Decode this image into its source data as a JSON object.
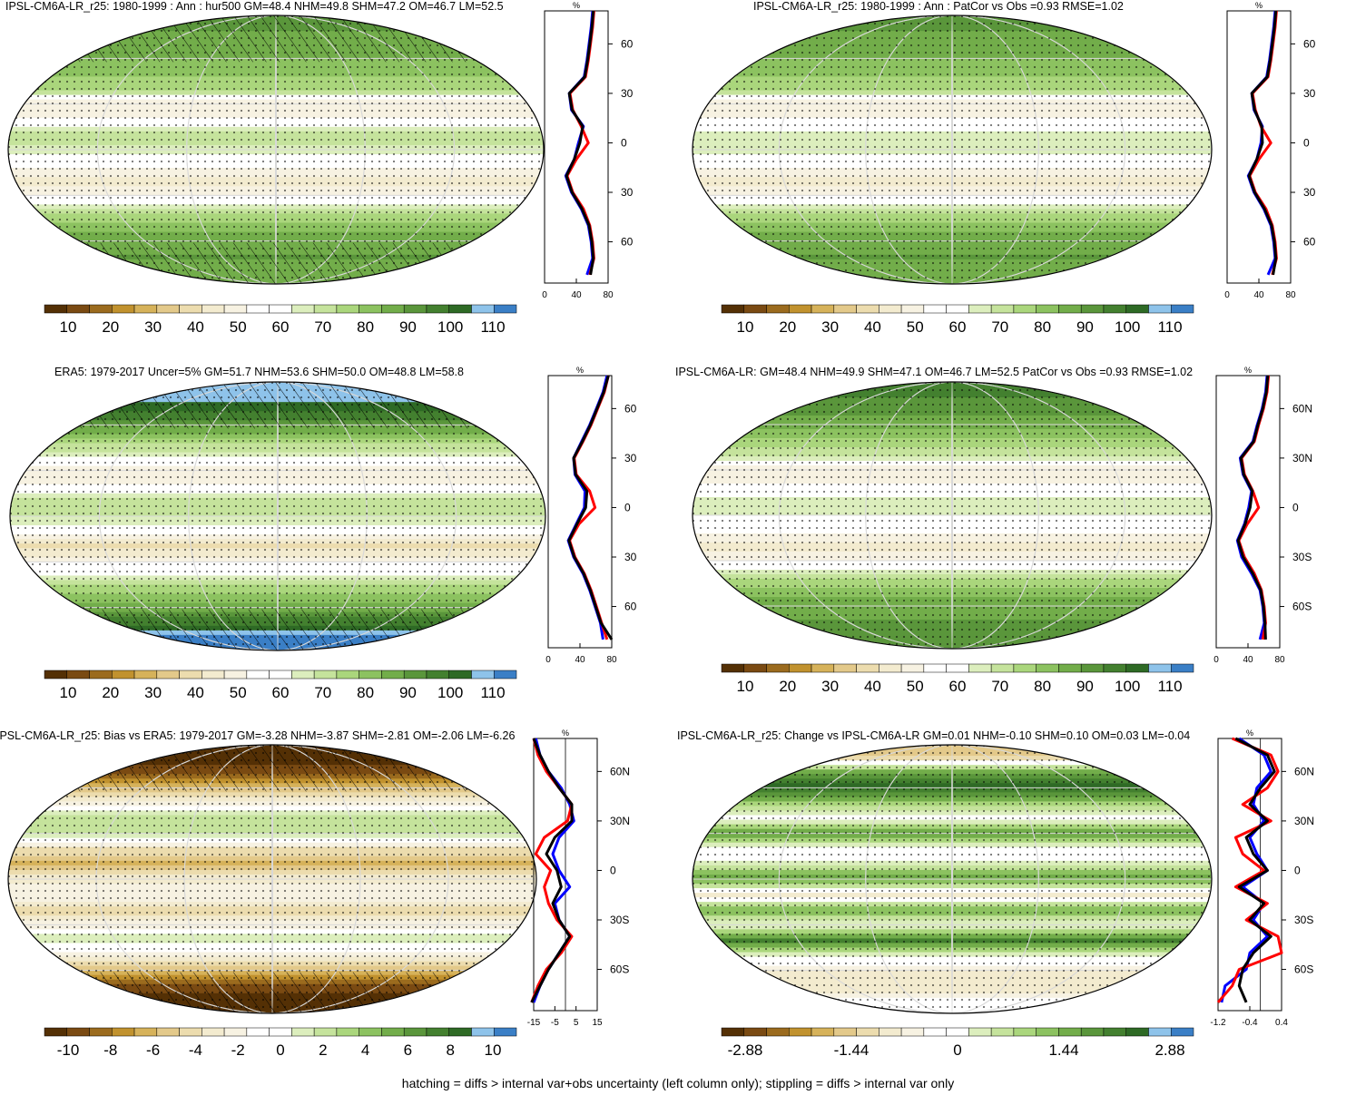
{
  "footer": "hatching = diffs > internal var+obs uncertainty (left column only); stippling = diffs > internal var only",
  "colors": {
    "palette": [
      "#543005",
      "#7a4a12",
      "#9b6b1e",
      "#c1922e",
      "#d6b25a",
      "#e3c98a",
      "#ecdcae",
      "#f3ebcf",
      "#f7f2e2",
      "#ffffff",
      "#ffffff",
      "#dceebd",
      "#c5e39c",
      "#aad67c",
      "#8cc260",
      "#72ad4a",
      "#5a963b",
      "#43802f",
      "#2e6a25",
      "#8ec3ea",
      "#3a7fc6"
    ],
    "model_line": "#0000ff",
    "obs_line": "#ff0000",
    "ens_line": "#000000"
  },
  "panels": [
    {
      "id": "p1",
      "title": "IPSL-CM6A-LR_r25: 1980-1999 : Ann : hur500 GM=48.4 NHM=49.8 SHM=47.2 OM=46.7 LM=52.5",
      "unit": "%",
      "colorbar_labels": [
        "10",
        "20",
        "30",
        "40",
        "50",
        "60",
        "70",
        "80",
        "90",
        "100",
        "110"
      ],
      "profile_xticks": [
        "0",
        "40",
        "80"
      ],
      "lat_ticks": [
        "60N",
        "30N",
        "0",
        "30S",
        "60S"
      ],
      "hatched": true,
      "stippled": true
    },
    {
      "id": "p2",
      "title": "IPSL-CM6A-LR_r25: 1980-1999 : Ann : PatCor vs Obs =0.93 RMSE=1.02",
      "unit": "%",
      "colorbar_labels": [
        "10",
        "20",
        "30",
        "40",
        "50",
        "60",
        "70",
        "80",
        "90",
        "100",
        "110"
      ],
      "profile_xticks": [
        "0",
        "40",
        "80"
      ],
      "lat_ticks": [
        "60N",
        "30N",
        "0",
        "30S",
        "60S"
      ],
      "hatched": false,
      "stippled": true
    },
    {
      "id": "p3",
      "title": "ERA5: 1979-2017 Uncer=5% GM=51.7 NHM=53.6 SHM=50.0 OM=48.8 LM=58.8",
      "unit": "%",
      "colorbar_labels": [
        "10",
        "20",
        "30",
        "40",
        "50",
        "60",
        "70",
        "80",
        "90",
        "100",
        "110"
      ],
      "profile_xticks": [
        "0",
        "40",
        "80"
      ],
      "lat_ticks": [
        "60N",
        "30N",
        "0",
        "30S",
        "60S"
      ],
      "hatched": true,
      "stippled": true
    },
    {
      "id": "p4",
      "title": "IPSL-CM6A-LR: GM=48.4 NHM=49.9 SHM=47.1 OM=46.7 LM=52.5 PatCor vs Obs =0.93 RMSE=1.02",
      "unit": "%",
      "colorbar_labels": [
        "10",
        "20",
        "30",
        "40",
        "50",
        "60",
        "70",
        "80",
        "90",
        "100",
        "110"
      ],
      "profile_xticks": [
        "0",
        "40",
        "80"
      ],
      "lat_ticks": [
        "60N",
        "30N",
        "0",
        "30S",
        "60S"
      ],
      "hatched": false,
      "stippled": true
    },
    {
      "id": "p5",
      "title": "IPSL-CM6A-LR_r25: Bias vs ERA5: 1979-2017 GM=-3.28 NHM=-3.87 SHM=-2.81 OM=-2.06 LM=-6.26",
      "unit": "%",
      "colorbar_labels": [
        "-10",
        "-8",
        "-6",
        "-4",
        "-2",
        "0",
        "2",
        "4",
        "6",
        "8",
        "10"
      ],
      "profile_xticks": [
        "-15",
        "-5",
        "5",
        "15"
      ],
      "lat_ticks": [
        "60N",
        "30N",
        "0",
        "30S",
        "60S"
      ],
      "hatched": true,
      "stippled": true
    },
    {
      "id": "p6",
      "title": "IPSL-CM6A-LR_r25: Change vs IPSL-CM6A-LR GM=0.01 NHM=-0.10 SHM=0.10 OM=0.03 LM=-0.04",
      "unit": "%",
      "colorbar_labels": [
        "-2.88",
        "-1.44",
        "0",
        "1.44",
        "2.88"
      ],
      "profile_xticks": [
        "-1.2",
        "-0.4",
        "0.4"
      ],
      "lat_ticks": [
        "60N",
        "30N",
        "0",
        "30S",
        "60S"
      ],
      "hatched": false,
      "stippled": true
    }
  ],
  "chart_data": [
    {
      "type": "heatmap",
      "title": "IPSL-CM6A-LR_r25: 1980-1999 : Ann : hur500 GM=48.4 NHM=49.8 SHM=47.2 OM=46.7 LM=52.5",
      "zonal_profile": {
        "lat": [
          80,
          70,
          60,
          50,
          40,
          30,
          20,
          10,
          0,
          -10,
          -20,
          -30,
          -40,
          -50,
          -60,
          -70,
          -80
        ],
        "series": [
          {
            "name": "model",
            "values": [
              68,
              66,
              63,
              60,
              56,
              35,
              38,
              55,
              48,
              42,
              30,
              38,
              52,
              62,
              66,
              68,
              60
            ]
          },
          {
            "name": "obs",
            "values": [
              70,
              68,
              65,
              62,
              58,
              36,
              40,
              52,
              62,
              45,
              32,
              40,
              55,
              64,
              68,
              70,
              64
            ]
          },
          {
            "name": "ensemble",
            "values": [
              69,
              67,
              64,
              61,
              57,
              35,
              39,
              54,
              50,
              42,
              31,
              39,
              53,
              63,
              67,
              69,
              65
            ]
          }
        ],
        "xlim": [
          0,
          90
        ]
      }
    },
    {
      "type": "heatmap",
      "title": "IPSL-CM6A-LR_r25: 1980-1999 : Ann : PatCor vs Obs =0.93 RMSE=1.02",
      "zonal_profile": {
        "lat": [
          80,
          70,
          60,
          50,
          40,
          30,
          20,
          10,
          0,
          -10,
          -20,
          -30,
          -40,
          -50,
          -60,
          -70,
          -80
        ],
        "series": [
          {
            "name": "model",
            "values": [
              68,
              66,
              63,
              60,
              56,
              35,
              38,
              50,
              48,
              42,
              30,
              38,
              52,
              62,
              66,
              68,
              58
            ]
          },
          {
            "name": "obs",
            "values": [
              70,
              68,
              65,
              62,
              58,
              36,
              40,
              48,
              62,
              45,
              32,
              40,
              55,
              64,
              68,
              70,
              64
            ]
          },
          {
            "name": "ensemble",
            "values": [
              69,
              67,
              64,
              61,
              57,
              35,
              39,
              49,
              50,
              42,
              31,
              39,
              53,
              63,
              67,
              69,
              65
            ]
          }
        ],
        "xlim": [
          0,
          90
        ]
      }
    },
    {
      "type": "heatmap",
      "title": "ERA5: 1979-2017 Uncer=5% GM=51.7 NHM=53.6 SHM=50.0 OM=48.8 LM=58.8",
      "zonal_profile": {
        "lat": [
          80,
          70,
          60,
          50,
          40,
          30,
          20,
          10,
          0,
          -10,
          -20,
          -30,
          -40,
          -50,
          -60,
          -70,
          -80
        ],
        "series": [
          {
            "name": "model",
            "values": [
              88,
              82,
              72,
              62,
              50,
              38,
              40,
              55,
              54,
              42,
              30,
              38,
              52,
              62,
              70,
              78,
              82
            ]
          },
          {
            "name": "obs",
            "values": [
              90,
              84,
              74,
              64,
              52,
              39,
              42,
              62,
              70,
              46,
              32,
              40,
              54,
              64,
              72,
              80,
              88
            ]
          },
          {
            "name": "ensemble",
            "values": [
              90,
              83,
              73,
              63,
              51,
              38,
              41,
              58,
              56,
              43,
              31,
              39,
              53,
              63,
              71,
              79,
              95
            ]
          }
        ],
        "xlim": [
          0,
          95
        ]
      }
    },
    {
      "type": "heatmap",
      "title": "IPSL-CM6A-LR: GM=48.4 NHM=49.9 SHM=47.1 OM=46.7 LM=52.5 PatCor vs Obs =0.93 RMSE=1.02",
      "zonal_profile": {
        "lat": [
          80,
          70,
          60,
          50,
          40,
          30,
          20,
          10,
          0,
          -10,
          -20,
          -30,
          -40,
          -50,
          -60,
          -70,
          -80
        ],
        "series": [
          {
            "name": "model",
            "values": [
              72,
              70,
              65,
              58,
              52,
              34,
              38,
              50,
              46,
              40,
              30,
              36,
              50,
              62,
              66,
              68,
              62
            ]
          },
          {
            "name": "obs",
            "values": [
              74,
              72,
              67,
              60,
              54,
              36,
              40,
              52,
              60,
              44,
              32,
              40,
              54,
              64,
              68,
              70,
              66
            ]
          },
          {
            "name": "ensemble",
            "values": [
              73,
              71,
              66,
              59,
              53,
              35,
              39,
              51,
              48,
              41,
              31,
              38,
              52,
              63,
              67,
              69,
              70
            ]
          }
        ],
        "xlim": [
          0,
          90
        ]
      }
    },
    {
      "type": "heatmap",
      "title": "IPSL-CM6A-LR_r25: Bias vs ERA5: 1979-2017 GM=-3.28 NHM=-3.87 SHM=-2.81 OM=-2.06 LM=-6.26",
      "zonal_profile": {
        "lat": [
          80,
          70,
          60,
          50,
          40,
          30,
          20,
          10,
          0,
          -10,
          -20,
          -30,
          -40,
          -50,
          -60,
          -70,
          -80
        ],
        "series": [
          {
            "name": "model",
            "values": [
              -14,
              -12,
              -8,
              -2,
              2,
              4,
              -3,
              -6,
              -3,
              2,
              -5,
              -3,
              2,
              -3,
              -8,
              -12,
              -15
            ]
          },
          {
            "name": "obs",
            "values": [
              -15,
              -13,
              -9,
              -3,
              3,
              1,
              -10,
              -14,
              -7,
              -10,
              -8,
              -4,
              3,
              -2,
              -9,
              -13,
              -16
            ]
          },
          {
            "name": "ensemble",
            "values": [
              -15,
              -12,
              -8,
              -3,
              3,
              3,
              -5,
              -9,
              -4,
              -2,
              -6,
              -3,
              2,
              -3,
              -8,
              -12,
              -16
            ]
          }
        ],
        "xlim": [
          -15,
          15
        ]
      }
    },
    {
      "type": "heatmap",
      "title": "IPSL-CM6A-LR_r25: Change vs IPSL-CM6A-LR GM=0.01 NHM=-0.10 SHM=0.10 OM=0.03 LM=-0.04",
      "zonal_profile": {
        "lat": [
          80,
          70,
          60,
          50,
          40,
          30,
          20,
          10,
          0,
          -10,
          -20,
          -30,
          -40,
          -50,
          -60,
          -70,
          -80
        ],
        "series": [
          {
            "name": "model",
            "values": [
              -0.6,
              0.1,
              0.3,
              -0.1,
              -0.2,
              0.1,
              -0.3,
              -0.1,
              0.2,
              -0.5,
              0.1,
              -0.2,
              0.2,
              -0.3,
              -0.4,
              -1.0,
              -1.1
            ]
          },
          {
            "name": "obs",
            "values": [
              -0.8,
              0.3,
              0.5,
              0.2,
              -0.5,
              0.3,
              -0.7,
              -0.5,
              0.1,
              -0.7,
              0.2,
              -0.4,
              0.5,
              0.6,
              -0.6,
              -0.8,
              -1.2
            ]
          },
          {
            "name": "ensemble",
            "values": [
              -0.7,
              0.2,
              0.4,
              0.0,
              -0.3,
              0.2,
              -0.4,
              -0.2,
              0.2,
              -0.6,
              0.1,
              -0.3,
              0.3,
              -0.2,
              -0.5,
              -0.6,
              -0.4
            ]
          }
        ],
        "xlim": [
          -1.2,
          0.6
        ]
      }
    }
  ]
}
